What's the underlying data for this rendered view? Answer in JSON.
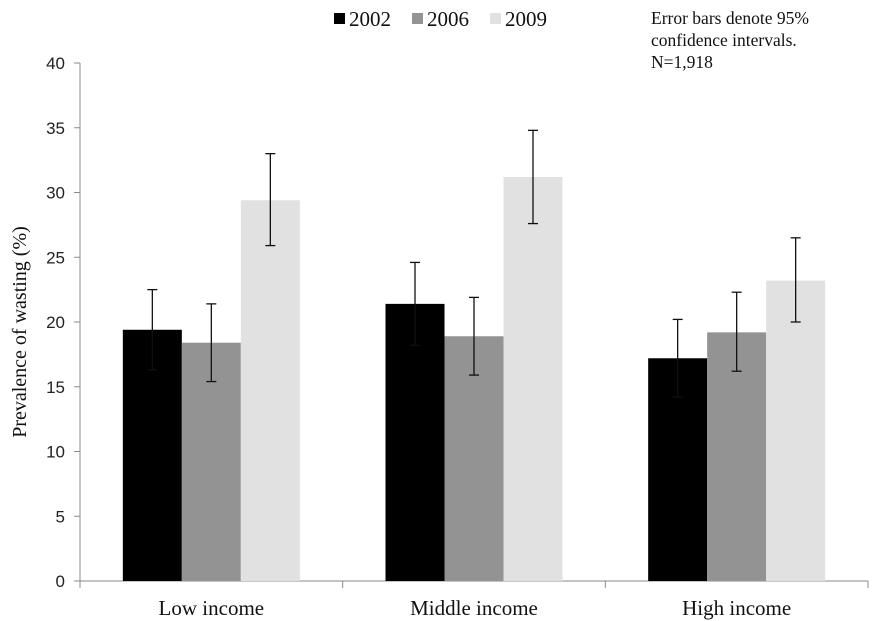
{
  "chart_data": {
    "type": "bar",
    "categories": [
      "Low income",
      "Middle income",
      "High income"
    ],
    "series": [
      {
        "name": "2002",
        "color": "#000000",
        "values": [
          19.4,
          21.4,
          17.2
        ],
        "ci_low": [
          16.3,
          18.2,
          14.2
        ],
        "ci_high": [
          22.5,
          24.6,
          20.2
        ]
      },
      {
        "name": "2006",
        "color": "#939393",
        "values": [
          18.4,
          18.9,
          19.2
        ],
        "ci_low": [
          15.4,
          15.9,
          16.2
        ],
        "ci_high": [
          21.4,
          21.9,
          22.3
        ]
      },
      {
        "name": "2009",
        "color": "#e1e1e1",
        "values": [
          29.4,
          31.2,
          23.2
        ],
        "ci_low": [
          25.9,
          27.6,
          20.0
        ],
        "ci_high": [
          33.0,
          34.8,
          26.5
        ]
      }
    ],
    "xlabel": "",
    "ylabel": "Prevalence of wasting (%)",
    "ylim": [
      0,
      40
    ],
    "yticks": [
      0,
      5,
      10,
      15,
      20,
      25,
      30,
      35,
      40
    ],
    "grid": false,
    "legend": "top-center",
    "annotation": [
      "Error bars denote 95%",
      "confidence intervals.",
      "N=1,918"
    ]
  }
}
